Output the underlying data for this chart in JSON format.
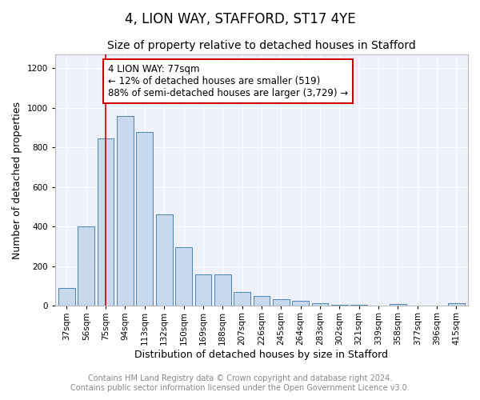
{
  "title": "4, LION WAY, STAFFORD, ST17 4YE",
  "subtitle": "Size of property relative to detached houses in Stafford",
  "xlabel": "Distribution of detached houses by size in Stafford",
  "ylabel": "Number of detached properties",
  "categories": [
    "37sqm",
    "56sqm",
    "75sqm",
    "94sqm",
    "113sqm",
    "132sqm",
    "150sqm",
    "169sqm",
    "188sqm",
    "207sqm",
    "226sqm",
    "245sqm",
    "264sqm",
    "283sqm",
    "302sqm",
    "321sqm",
    "339sqm",
    "358sqm",
    "377sqm",
    "396sqm",
    "415sqm"
  ],
  "values": [
    90,
    400,
    845,
    960,
    880,
    460,
    295,
    160,
    160,
    70,
    50,
    35,
    25,
    15,
    5,
    5,
    0,
    10,
    0,
    0,
    15
  ],
  "bar_color": "#c8d8ed",
  "bar_edge_color": "#4f82b0",
  "bar_width": 0.85,
  "vline_x": 2,
  "vline_color": "#cc0000",
  "annotation_line1": "4 LION WAY: 77sqm",
  "annotation_line2": "← 12% of detached houses are smaller (519)",
  "annotation_line3": "88% of semi-detached houses are larger (3,729) →",
  "annotation_box_color": "#ffffff",
  "annotation_box_edge_color": "#cc0000",
  "ylim": [
    0,
    1270
  ],
  "yticks": [
    0,
    200,
    400,
    600,
    800,
    1000,
    1200
  ],
  "background_color": "#edf1fb",
  "grid_color": "#ffffff",
  "footnote": "Contains HM Land Registry data © Crown copyright and database right 2024.\nContains public sector information licensed under the Open Government Licence v3.0.",
  "title_fontsize": 12,
  "subtitle_fontsize": 10,
  "xlabel_fontsize": 9,
  "ylabel_fontsize": 9,
  "tick_fontsize": 7.5,
  "annotation_fontsize": 8.5,
  "footnote_fontsize": 7
}
